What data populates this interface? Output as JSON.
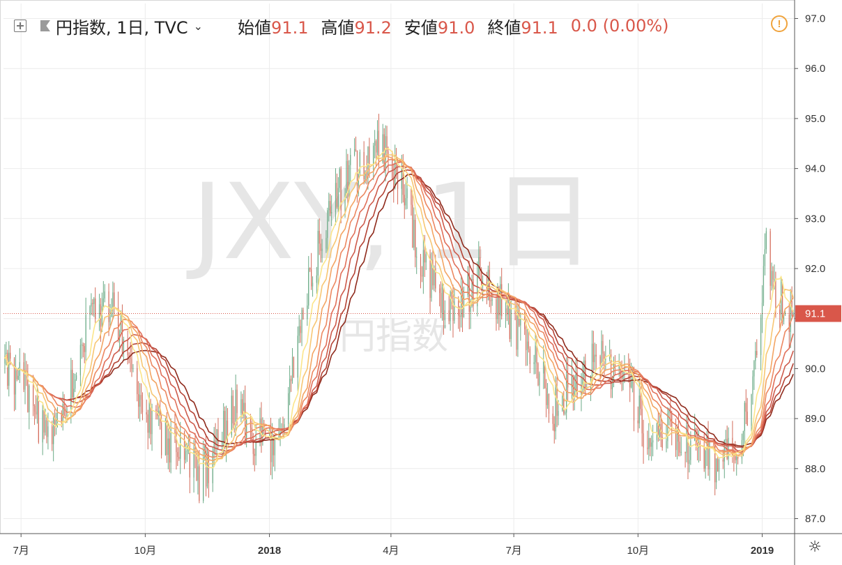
{
  "header": {
    "title": "円指数, 1日, TVC",
    "open_label": "始値",
    "open_value": "91.1",
    "high_label": "高値",
    "high_value": "91.2",
    "low_label": "安値",
    "low_value": "91.0",
    "close_label": "終値",
    "close_value": "91.1",
    "change": "0.0 (0.00%)"
  },
  "watermark": {
    "symbol": "JXY, 1日",
    "description": "円指数"
  },
  "icons": {
    "add": "plus-box-icon",
    "flag": "flag-icon",
    "chevron": "chevron-down-icon",
    "alert": "alert-icon",
    "settings": "gear-icon"
  },
  "price_label": "91.1",
  "colors": {
    "up": "#6aaa86",
    "down": "#d36b5a",
    "price_line": "#d9574a",
    "ribbon": [
      "#fbe58a",
      "#f7c673",
      "#f3a463",
      "#ec8760",
      "#e06f59",
      "#cd5a4b",
      "#b44234",
      "#8f2a1c"
    ]
  },
  "chart_data": {
    "type": "candlestick",
    "title": "円指数, 1日, TVC",
    "y_ticks": [
      "87.0",
      "88.0",
      "89.0",
      "90.0",
      "91.0",
      "92.0",
      "93.0",
      "94.0",
      "95.0",
      "96.0",
      "97.0"
    ],
    "ylim": [
      86.7,
      97.3
    ],
    "x_ticks": [
      {
        "label": "7月",
        "bold": false
      },
      {
        "label": "10月",
        "bold": false
      },
      {
        "label": "2018",
        "bold": true
      },
      {
        "label": "4月",
        "bold": false
      },
      {
        "label": "7月",
        "bold": false
      },
      {
        "label": "10月",
        "bold": false
      },
      {
        "label": "2019",
        "bold": true
      }
    ],
    "x_tick_dates": [
      "2017-07-01",
      "2017-10-01",
      "2018-01-01",
      "2018-04-01",
      "2018-07-01",
      "2018-10-01",
      "2019-01-01"
    ],
    "x_range": [
      "2017-06-18",
      "2019-01-25"
    ],
    "last_price": 91.1,
    "anchors": [
      {
        "date": "2017-06-19",
        "price": 90.1
      },
      {
        "date": "2017-07-05",
        "price": 89.5
      },
      {
        "date": "2017-07-20",
        "price": 88.6
      },
      {
        "date": "2017-08-05",
        "price": 89.5
      },
      {
        "date": "2017-08-20",
        "price": 91.0
      },
      {
        "date": "2017-09-08",
        "price": 91.4
      },
      {
        "date": "2017-09-15",
        "price": 90.4
      },
      {
        "date": "2017-09-25",
        "price": 89.3
      },
      {
        "date": "2017-10-15",
        "price": 88.6
      },
      {
        "date": "2017-11-01",
        "price": 88.2
      },
      {
        "date": "2017-11-10",
        "price": 87.8
      },
      {
        "date": "2017-11-25",
        "price": 88.5
      },
      {
        "date": "2017-12-05",
        "price": 89.3
      },
      {
        "date": "2017-12-20",
        "price": 88.6
      },
      {
        "date": "2018-01-05",
        "price": 88.5
      },
      {
        "date": "2018-01-20",
        "price": 90.2
      },
      {
        "date": "2018-01-30",
        "price": 91.6
      },
      {
        "date": "2018-02-15",
        "price": 93.3
      },
      {
        "date": "2018-03-05",
        "price": 94.0
      },
      {
        "date": "2018-03-25",
        "price": 94.4
      },
      {
        "date": "2018-04-10",
        "price": 93.6
      },
      {
        "date": "2018-04-25",
        "price": 92.0
      },
      {
        "date": "2018-05-15",
        "price": 91.1
      },
      {
        "date": "2018-06-05",
        "price": 91.8
      },
      {
        "date": "2018-06-25",
        "price": 91.1
      },
      {
        "date": "2018-07-15",
        "price": 90.4
      },
      {
        "date": "2018-07-30",
        "price": 89.1
      },
      {
        "date": "2018-08-15",
        "price": 89.9
      },
      {
        "date": "2018-09-05",
        "price": 90.2
      },
      {
        "date": "2018-09-25",
        "price": 89.6
      },
      {
        "date": "2018-10-10",
        "price": 88.5
      },
      {
        "date": "2018-10-25",
        "price": 88.8
      },
      {
        "date": "2018-11-10",
        "price": 88.4
      },
      {
        "date": "2018-11-30",
        "price": 88.1
      },
      {
        "date": "2018-12-15",
        "price": 88.4
      },
      {
        "date": "2018-12-25",
        "price": 89.8
      },
      {
        "date": "2019-01-04",
        "price": 92.3
      },
      {
        "date": "2019-01-12",
        "price": 91.4
      },
      {
        "date": "2019-01-24",
        "price": 91.1
      }
    ],
    "ma_periods": [
      10,
      15,
      20,
      25,
      30,
      35,
      40,
      45
    ]
  }
}
